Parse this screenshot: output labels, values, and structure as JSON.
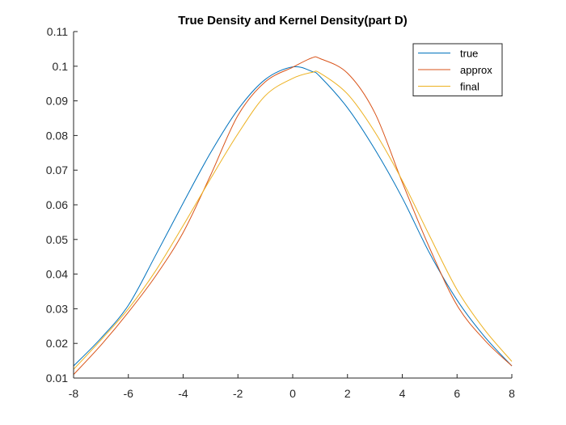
{
  "chart_data": {
    "type": "line",
    "title": "True Density and Kernel Density(part D)",
    "xlabel": "",
    "ylabel": "",
    "xlim": [
      -8,
      8
    ],
    "ylim": [
      0.01,
      0.11
    ],
    "x_ticks": [
      -8,
      -6,
      -4,
      -2,
      0,
      2,
      4,
      6,
      8
    ],
    "x_tick_labels": [
      "-8",
      "-6",
      "-4",
      "-2",
      "0",
      "2",
      "4",
      "6",
      "8"
    ],
    "y_ticks": [
      0.01,
      0.02,
      0.03,
      0.04,
      0.05,
      0.06,
      0.07,
      0.08,
      0.09,
      0.1,
      0.11
    ],
    "y_tick_labels": [
      "0.01",
      "0.02",
      "0.03",
      "0.04",
      "0.05",
      "0.06",
      "0.07",
      "0.08",
      "0.09",
      "0.1",
      "0.11"
    ],
    "grid": false,
    "legend_position": "top-right",
    "x": [
      -8,
      -7,
      -6,
      -5,
      -4,
      -3,
      -2,
      -1,
      0,
      0.7,
      1,
      2,
      3,
      4,
      5,
      6,
      7,
      8
    ],
    "series": [
      {
        "name": "true",
        "color": "#0072BD",
        "values": [
          0.0135,
          0.0215,
          0.031,
          0.0455,
          0.0605,
          0.075,
          0.0875,
          0.0962,
          0.0998,
          0.0985,
          0.097,
          0.088,
          0.076,
          0.062,
          0.046,
          0.0325,
          0.022,
          0.0135
        ]
      },
      {
        "name": "approx",
        "color": "#D95319",
        "values": [
          0.011,
          0.0195,
          0.029,
          0.0395,
          0.052,
          0.0685,
          0.0858,
          0.0955,
          0.0997,
          0.1024,
          0.1022,
          0.098,
          0.0865,
          0.0665,
          0.0475,
          0.031,
          0.021,
          0.0135
        ]
      },
      {
        "name": "final",
        "color": "#EDB120",
        "values": [
          0.0125,
          0.021,
          0.03,
          0.041,
          0.054,
          0.0675,
          0.0805,
          0.0915,
          0.0965,
          0.0982,
          0.098,
          0.092,
          0.081,
          0.067,
          0.051,
          0.0355,
          0.024,
          0.0148
        ]
      }
    ]
  }
}
